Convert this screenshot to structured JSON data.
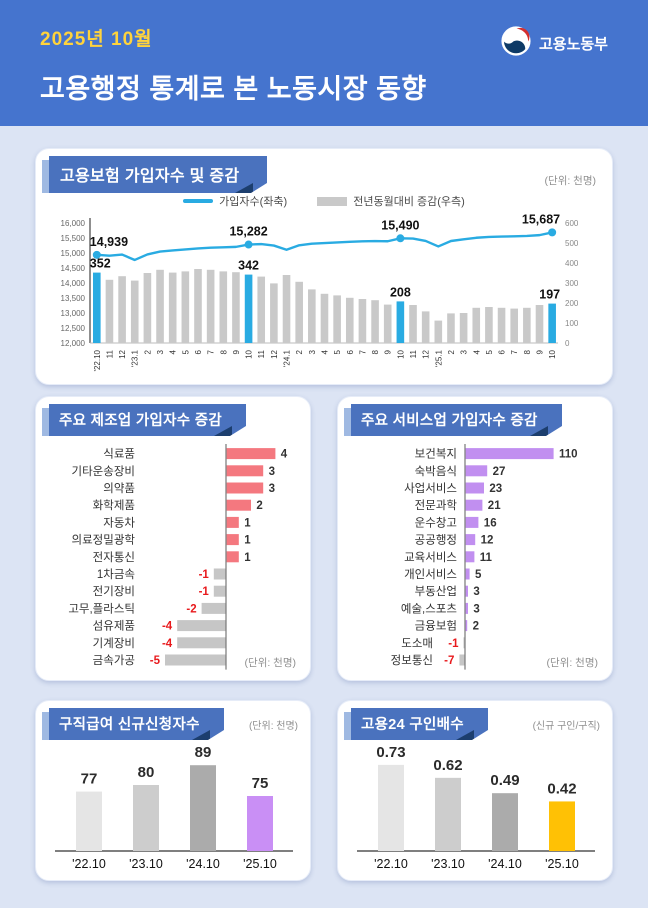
{
  "header": {
    "period": "2025년 10월",
    "title": "고용행정 통계로 본 노동시장 동향",
    "agency": "고용노동부"
  },
  "colors": {
    "header_bg": "#4574CE",
    "accent_yellow": "#FFD33C",
    "page_bg": "#DCE4F4",
    "badge_blue": "#4A72BE",
    "badge_fold": "#1C3E6E",
    "badge_strip": "#9FB9E2",
    "line_blue": "#29ABE2",
    "bar_gray": "#C9C9C9",
    "bar_pink": "#F4787F",
    "bar_purple": "#C18FF0",
    "bar_gold": "#FFC105",
    "negative_red": "#E8191C"
  },
  "chart_data": [
    {
      "type": "line+bar",
      "title": "고용보험 가입자수 및 증감",
      "unit": "(단위: 천명)",
      "legend": [
        "가입자수(좌축)",
        "전년동월대비 증감(우측)"
      ],
      "x": [
        "'22.10",
        "11",
        "12",
        "'23.1",
        "2",
        "3",
        "4",
        "5",
        "6",
        "7",
        "8",
        "9",
        "10",
        "11",
        "12",
        "'24.1",
        "2",
        "3",
        "4",
        "5",
        "6",
        "7",
        "8",
        "9",
        "10",
        "11",
        "12",
        "'25.1",
        "2",
        "3",
        "4",
        "5",
        "6",
        "7",
        "8",
        "9",
        "10"
      ],
      "bars": [
        352,
        316,
        334,
        312,
        350,
        366,
        352,
        358,
        370,
        366,
        358,
        354,
        342,
        332,
        298,
        340,
        306,
        268,
        246,
        238,
        226,
        220,
        214,
        192,
        208,
        190,
        158,
        112,
        148,
        150,
        176,
        180,
        176,
        172,
        176,
        190,
        197
      ],
      "line": [
        14939,
        14912,
        14948,
        14768,
        14952,
        15048,
        15086,
        15120,
        15152,
        15176,
        15190,
        15204,
        15282,
        15296,
        15248,
        15108,
        15258,
        15312,
        15330,
        15352,
        15372,
        15388,
        15398,
        15392,
        15490,
        15482,
        15402,
        15218,
        15400,
        15456,
        15508,
        15534,
        15548,
        15556,
        15568,
        15596,
        15687
      ],
      "left_axis": {
        "min": 12000,
        "max": 16000,
        "ticks": [
          "16,000",
          "15,500",
          "15,000",
          "14,500",
          "14,000",
          "13,500",
          "13,000",
          "12,500",
          "12,000"
        ]
      },
      "right_axis": {
        "min": 0,
        "max": 600,
        "ticks": [
          "600",
          "500",
          "400",
          "300",
          "200",
          "100",
          "0"
        ]
      },
      "highlight_indices": [
        0,
        12,
        24,
        36
      ],
      "line_labels": [
        "14,939",
        "15,282",
        "15,490",
        "15,687"
      ],
      "bar_labels": [
        "352",
        "342",
        "208",
        "197"
      ]
    },
    {
      "type": "bar-horizontal",
      "title": "주요 제조업 가입자수 증감",
      "unit": "(단위: 천명)",
      "categories": [
        "식료품",
        "기타운송장비",
        "의약품",
        "화학제품",
        "자동차",
        "의료정밀광학",
        "전자통신",
        "1차금속",
        "전기장비",
        "고무,플라스틱",
        "섬유제품",
        "기계장비",
        "금속가공"
      ],
      "values": [
        4,
        3,
        3,
        2,
        1,
        1,
        1,
        -1,
        -1,
        -2,
        -4,
        -4,
        -5
      ]
    },
    {
      "type": "bar-horizontal",
      "title": "주요 서비스업 가입자수 증감",
      "unit": "(단위: 천명)",
      "categories": [
        "보건복지",
        "숙박음식",
        "사업서비스",
        "전문과학",
        "운수창고",
        "공공행정",
        "교육서비스",
        "개인서비스",
        "부동산업",
        "예술,스포츠",
        "금융보험",
        "도소매",
        "정보통신"
      ],
      "values": [
        110,
        27,
        23,
        21,
        16,
        12,
        11,
        5,
        3,
        3,
        2,
        -1,
        -7
      ]
    },
    {
      "type": "bar",
      "title": "구직급여 신규신청자수",
      "unit": "(단위: 천명)",
      "categories": [
        "'22.10",
        "'23.10",
        "'24.10",
        "'25.10"
      ],
      "values": [
        77,
        80,
        89,
        75
      ],
      "value_labels": [
        "77",
        "80",
        "89",
        "75"
      ],
      "colors": [
        "#E5E5E5",
        "#CDCDCD",
        "#ABABAB",
        "#C98FF5"
      ]
    },
    {
      "type": "bar",
      "title": "고용24 구인배수",
      "unit": "(신규 구인/구직)",
      "categories": [
        "'22.10",
        "'23.10",
        "'24.10",
        "'25.10"
      ],
      "values": [
        0.73,
        0.62,
        0.49,
        0.42
      ],
      "value_labels": [
        "0.73",
        "0.62",
        "0.49",
        "0.42"
      ],
      "colors": [
        "#E5E5E5",
        "#CDCDCD",
        "#ABABAB",
        "#FFC105"
      ]
    }
  ]
}
